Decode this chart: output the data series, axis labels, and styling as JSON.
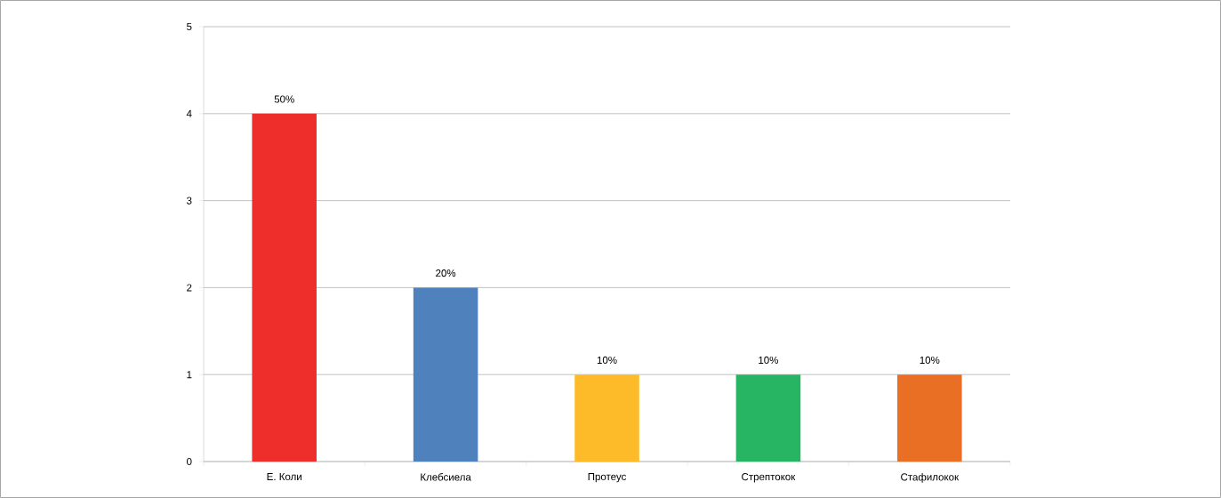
{
  "chart_data": {
    "type": "bar",
    "categories": [
      "Е. Коли",
      "Клебсиела",
      "Протеус",
      "Стрептокок",
      "Стафилокок"
    ],
    "values": [
      4,
      2,
      1,
      1,
      1
    ],
    "colors": [
      "#ee2e2a",
      "#4f81bd",
      "#fdbb2a",
      "#27b463",
      "#e96f25"
    ],
    "annotations": [
      {
        "text": "50%",
        "x": "Е. Коли",
        "y": 4
      },
      {
        "text": "20%",
        "x": "Клебсиела",
        "y": 2
      },
      {
        "text": "10%",
        "x": "Протеус",
        "y": 1
      },
      {
        "text": "10%",
        "x": "Стрептокок",
        "y": 1
      },
      {
        "text": "10%",
        "x": "Стафилокок",
        "y": 1
      }
    ],
    "ylim": [
      0,
      5
    ],
    "yticks": [
      0,
      1,
      2,
      3,
      4,
      5
    ],
    "grid": "y"
  }
}
